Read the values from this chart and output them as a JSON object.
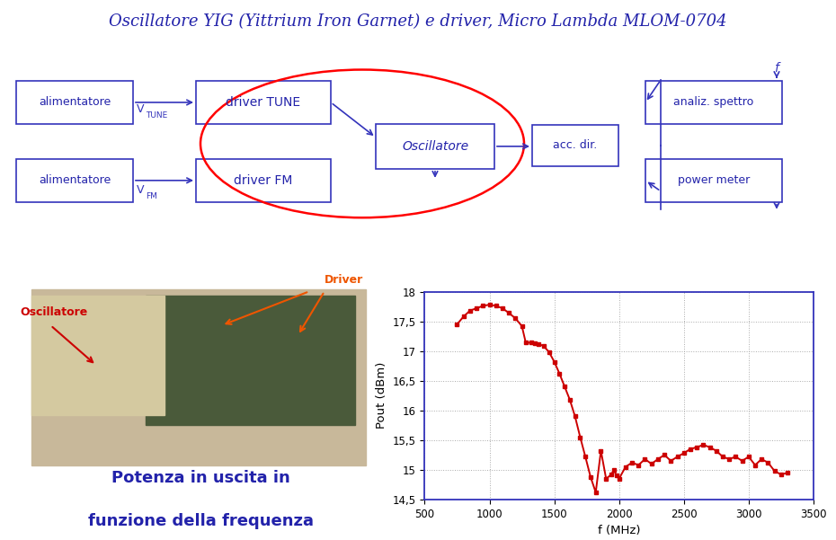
{
  "title_part1": "Oscillatore YIG (Yittrium Iron Garnet) e driver, ",
  "title_part2": "Micro Lambda MLOM-0704",
  "bg_color": "#ffffff",
  "plot_freq": [
    750,
    800,
    850,
    900,
    950,
    1000,
    1050,
    1100,
    1150,
    1200,
    1250,
    1280,
    1320,
    1350,
    1380,
    1420,
    1460,
    1500,
    1540,
    1580,
    1620,
    1660,
    1700,
    1740,
    1780,
    1820,
    1860,
    1900,
    1940,
    1960,
    1980,
    2000,
    2050,
    2100,
    2150,
    2200,
    2250,
    2300,
    2350,
    2400,
    2450,
    2500,
    2550,
    2600,
    2650,
    2700,
    2750,
    2800,
    2850,
    2900,
    2950,
    3000,
    3050,
    3100,
    3150,
    3200,
    3250,
    3300
  ],
  "plot_pout": [
    17.45,
    17.58,
    17.68,
    17.72,
    17.76,
    17.78,
    17.76,
    17.72,
    17.64,
    17.55,
    17.42,
    17.14,
    17.14,
    17.13,
    17.12,
    17.08,
    16.98,
    16.82,
    16.62,
    16.4,
    16.18,
    15.9,
    15.55,
    15.22,
    14.88,
    14.62,
    15.32,
    14.85,
    14.92,
    15.0,
    14.9,
    14.85,
    15.05,
    15.12,
    15.08,
    15.18,
    15.1,
    15.18,
    15.25,
    15.15,
    15.22,
    15.28,
    15.35,
    15.38,
    15.42,
    15.38,
    15.32,
    15.22,
    15.18,
    15.22,
    15.15,
    15.22,
    15.08,
    15.18,
    15.12,
    14.98,
    14.92,
    14.95
  ],
  "plot_color": "#cc0000",
  "xlabel": "f (MHz)",
  "ylabel": "Pout (dBm)",
  "xlim": [
    500,
    3500
  ],
  "ylim": [
    14.5,
    18
  ],
  "yticks": [
    14.5,
    15,
    15.5,
    16,
    16.5,
    17,
    17.5,
    18
  ],
  "xticks": [
    500,
    1000,
    1500,
    2000,
    2500,
    3000,
    3500
  ],
  "box_color": "#3333bb",
  "arrow_color": "#3333bb",
  "label_blue": "#2222aa",
  "label_red": "#cc0000",
  "label_orange": "#ee5500",
  "bottom_text_line1": "Potenza in uscita in",
  "bottom_text_line2": "funzione della frequenza",
  "osc_label": "Oscillatore",
  "driver_label": "Driver"
}
